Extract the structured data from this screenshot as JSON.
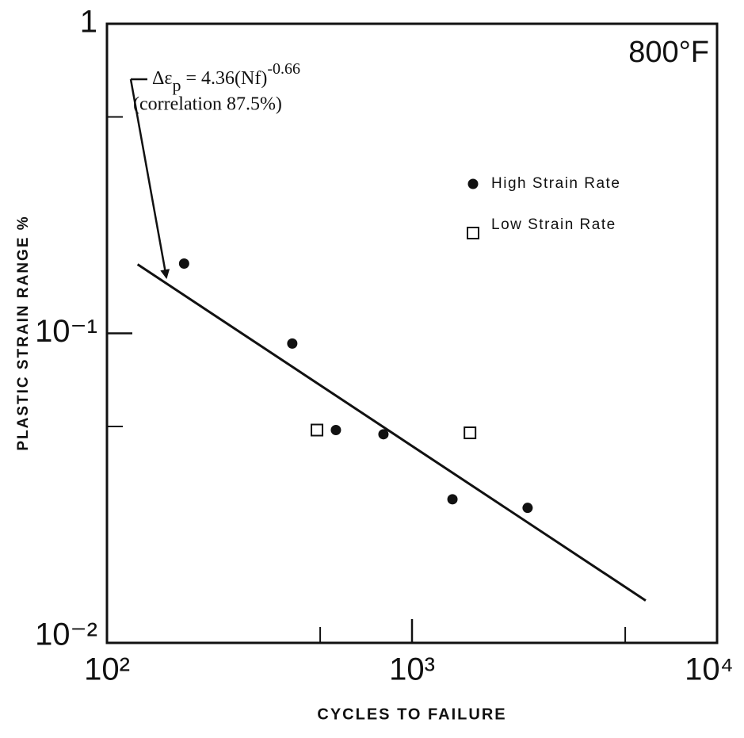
{
  "chart_data": {
    "type": "scatter",
    "title": "800°F",
    "x_label": "CYCLES TO FAILURE",
    "y_label": "PLASTIC STRAIN RANGE %",
    "log_x": true,
    "log_y": true,
    "xlim": [
      100,
      10000
    ],
    "ylim": [
      0.01,
      1
    ],
    "xticks": [
      {
        "value": 100,
        "label": "10²"
      },
      {
        "value": 1000,
        "label": "10³"
      },
      {
        "value": 10000,
        "label": "10⁴"
      }
    ],
    "yticks": [
      {
        "value": 0.01,
        "label": "10⁻²"
      },
      {
        "value": 0.1,
        "label": "10⁻¹"
      },
      1
    ],
    "x_minor_ticks": [
      500,
      5000
    ],
    "y_minor_ticks": [
      0.05,
      0.5
    ],
    "legend": "upper right",
    "series": [
      {
        "name": "High Strain Rate",
        "marker": "circle",
        "color": "#111111",
        "x": [
          179,
          405,
          563,
          806,
          1357,
          2393
        ],
        "values": [
          0.168,
          0.0927,
          0.0487,
          0.0472,
          0.0291,
          0.0273
        ]
      },
      {
        "name": "Low Strain Rate",
        "marker": "square",
        "color": "#111111",
        "x": [
          488,
          1549
        ],
        "values": [
          0.0487,
          0.0477
        ]
      }
    ],
    "fit_line": {
      "x": [
        126,
        5835
      ],
      "values": [
        0.167,
        0.0137
      ],
      "color": "#111111"
    },
    "annotation": {
      "lhs": "Δε",
      "sub": "p",
      "rhs": " = 4.36(Nf)",
      "sup": "-0.66",
      "note": "(correlation 87.5%)"
    }
  }
}
